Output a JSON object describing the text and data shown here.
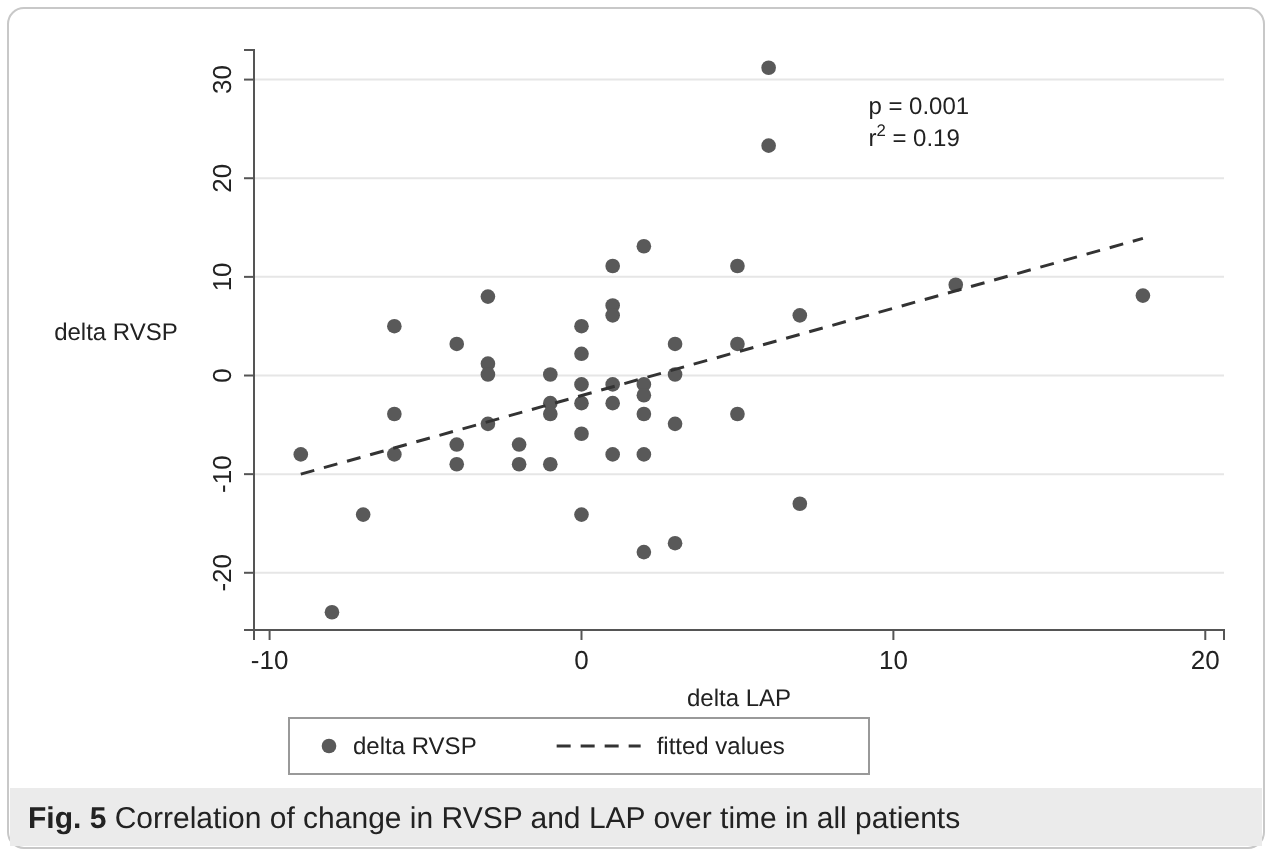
{
  "chart_data": {
    "type": "scatter",
    "xlabel": "delta LAP",
    "ylabel": "delta RVSP",
    "xlim": [
      -10.5,
      20.6
    ],
    "ylim": [
      -25.8,
      33
    ],
    "xticks": [
      -10,
      0,
      10,
      20
    ],
    "yticks": [
      -20,
      -10,
      0,
      10,
      20,
      30
    ],
    "grid": "y",
    "legend": "bottom",
    "marker": "circle",
    "annotations": [
      "p = 0.001",
      "r$^{2}$ = 0.19",
      "Fig. 5 Correlation of change in RVSP and LAP over time in all patients"
    ],
    "series": [
      {
        "name": "delta RVSP",
        "color": "#595959",
        "x": [
          -9,
          -8,
          -7,
          -6,
          -6,
          -6,
          -4,
          -4,
          -4,
          -3,
          -3,
          -3,
          -3,
          -2,
          -2,
          -1,
          -1,
          -1,
          -1,
          0,
          0,
          0,
          0,
          0,
          0,
          1,
          1,
          1,
          1,
          1,
          1,
          2,
          2,
          2,
          2,
          2,
          2,
          3,
          3,
          3,
          3,
          5,
          5,
          5,
          6,
          6,
          7,
          7,
          12,
          18
        ],
        "values": [
          -8,
          -24,
          -14.1,
          5,
          -3.9,
          -8,
          3.2,
          -7,
          -9,
          8,
          1.2,
          0.1,
          -4.9,
          -7,
          -9,
          0.1,
          -2.8,
          -3.9,
          -9,
          5,
          2.2,
          -0.9,
          -2.8,
          -5.9,
          -14.1,
          11.1,
          7.1,
          6.1,
          -0.9,
          -2.8,
          -8,
          13.1,
          -0.9,
          -2,
          -3.9,
          -8,
          -17.9,
          3.2,
          0.1,
          -4.9,
          -17,
          11.1,
          3.2,
          -3.9,
          31.2,
          23.3,
          6.1,
          -13,
          9.2,
          8.1
        ]
      },
      {
        "name": "fitted values",
        "type": "line",
        "line_style": "dashed",
        "marker": "none",
        "color": "#333333",
        "x": [
          -9,
          18
        ],
        "values": [
          -10,
          13.9
        ]
      }
    ]
  }
}
